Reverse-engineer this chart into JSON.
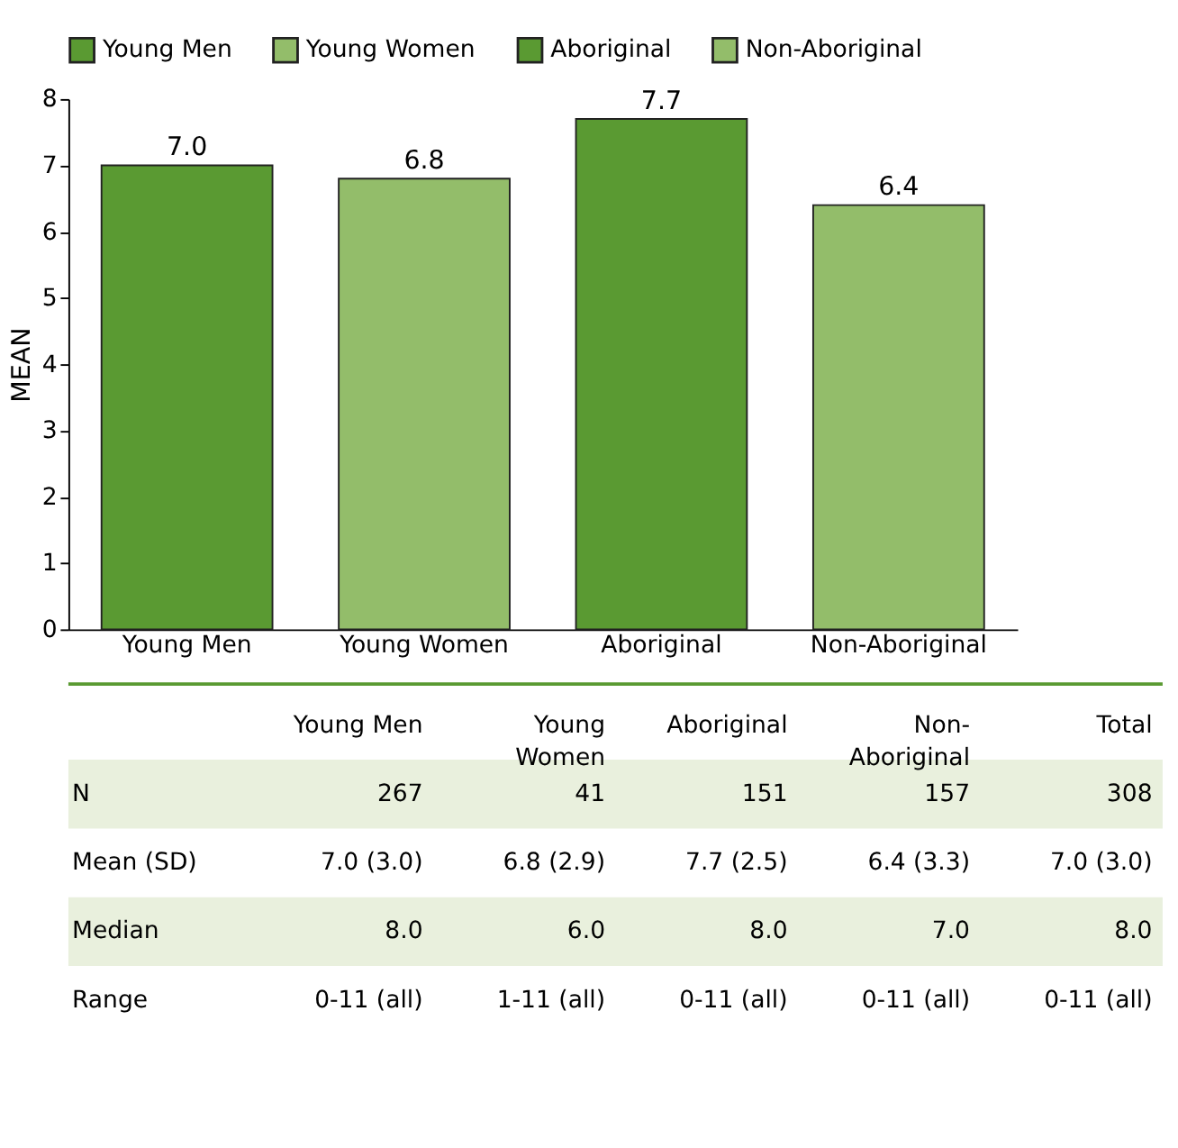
{
  "chart_data": [
    {
      "type": "bar",
      "ylabel": "MEAN",
      "categories": [
        "Young Men",
        "Young Women",
        "Aboriginal",
        "Non-Aboriginal"
      ],
      "series": [
        {
          "name": "Young Men",
          "color": "#5a9a32",
          "values": [
            7.0,
            null,
            null,
            null
          ],
          "value_labels": [
            "7.0",
            null,
            null,
            null
          ]
        },
        {
          "name": "Young Women",
          "color": "#93bd6a",
          "values": [
            null,
            6.8,
            null,
            null
          ],
          "value_labels": [
            null,
            "6.8",
            null,
            null
          ]
        },
        {
          "name": "Aboriginal",
          "color": "#5a9a32",
          "values": [
            null,
            null,
            7.7,
            null
          ],
          "value_labels": [
            null,
            null,
            "7.7",
            null
          ]
        },
        {
          "name": "Non-Aboriginal",
          "color": "#93bd6a",
          "values": [
            null,
            null,
            null,
            6.4
          ],
          "value_labels": [
            null,
            null,
            null,
            "6.4"
          ]
        }
      ],
      "ylim": [
        0,
        8
      ],
      "yticks": [
        0,
        1,
        2,
        3,
        4,
        5,
        6,
        7,
        8
      ],
      "legend": "top",
      "grid": false
    },
    {
      "type": "other",
      "categories": [
        null,
        "Young Men",
        "Young\nWomen",
        "Aboriginal",
        "Non-\nAboriginal",
        "Total"
      ],
      "y_categories": [
        "N",
        "Mean (SD)",
        "Median",
        "Range"
      ],
      "cell_labels": [
        [
          "267",
          "41",
          "151",
          "157",
          "308"
        ],
        [
          "7.0 (3.0)",
          "6.8 (2.9)",
          "7.7 (2.5)",
          "6.4 (3.3)",
          "7.0 (3.0)"
        ],
        [
          "8.0",
          "6.0",
          "8.0",
          "7.0",
          "8.0"
        ],
        [
          "0-11 (all)",
          "1-11 (all)",
          "0-11 (all)",
          "0-11 (all)",
          "0-11 (all)"
        ]
      ]
    }
  ]
}
